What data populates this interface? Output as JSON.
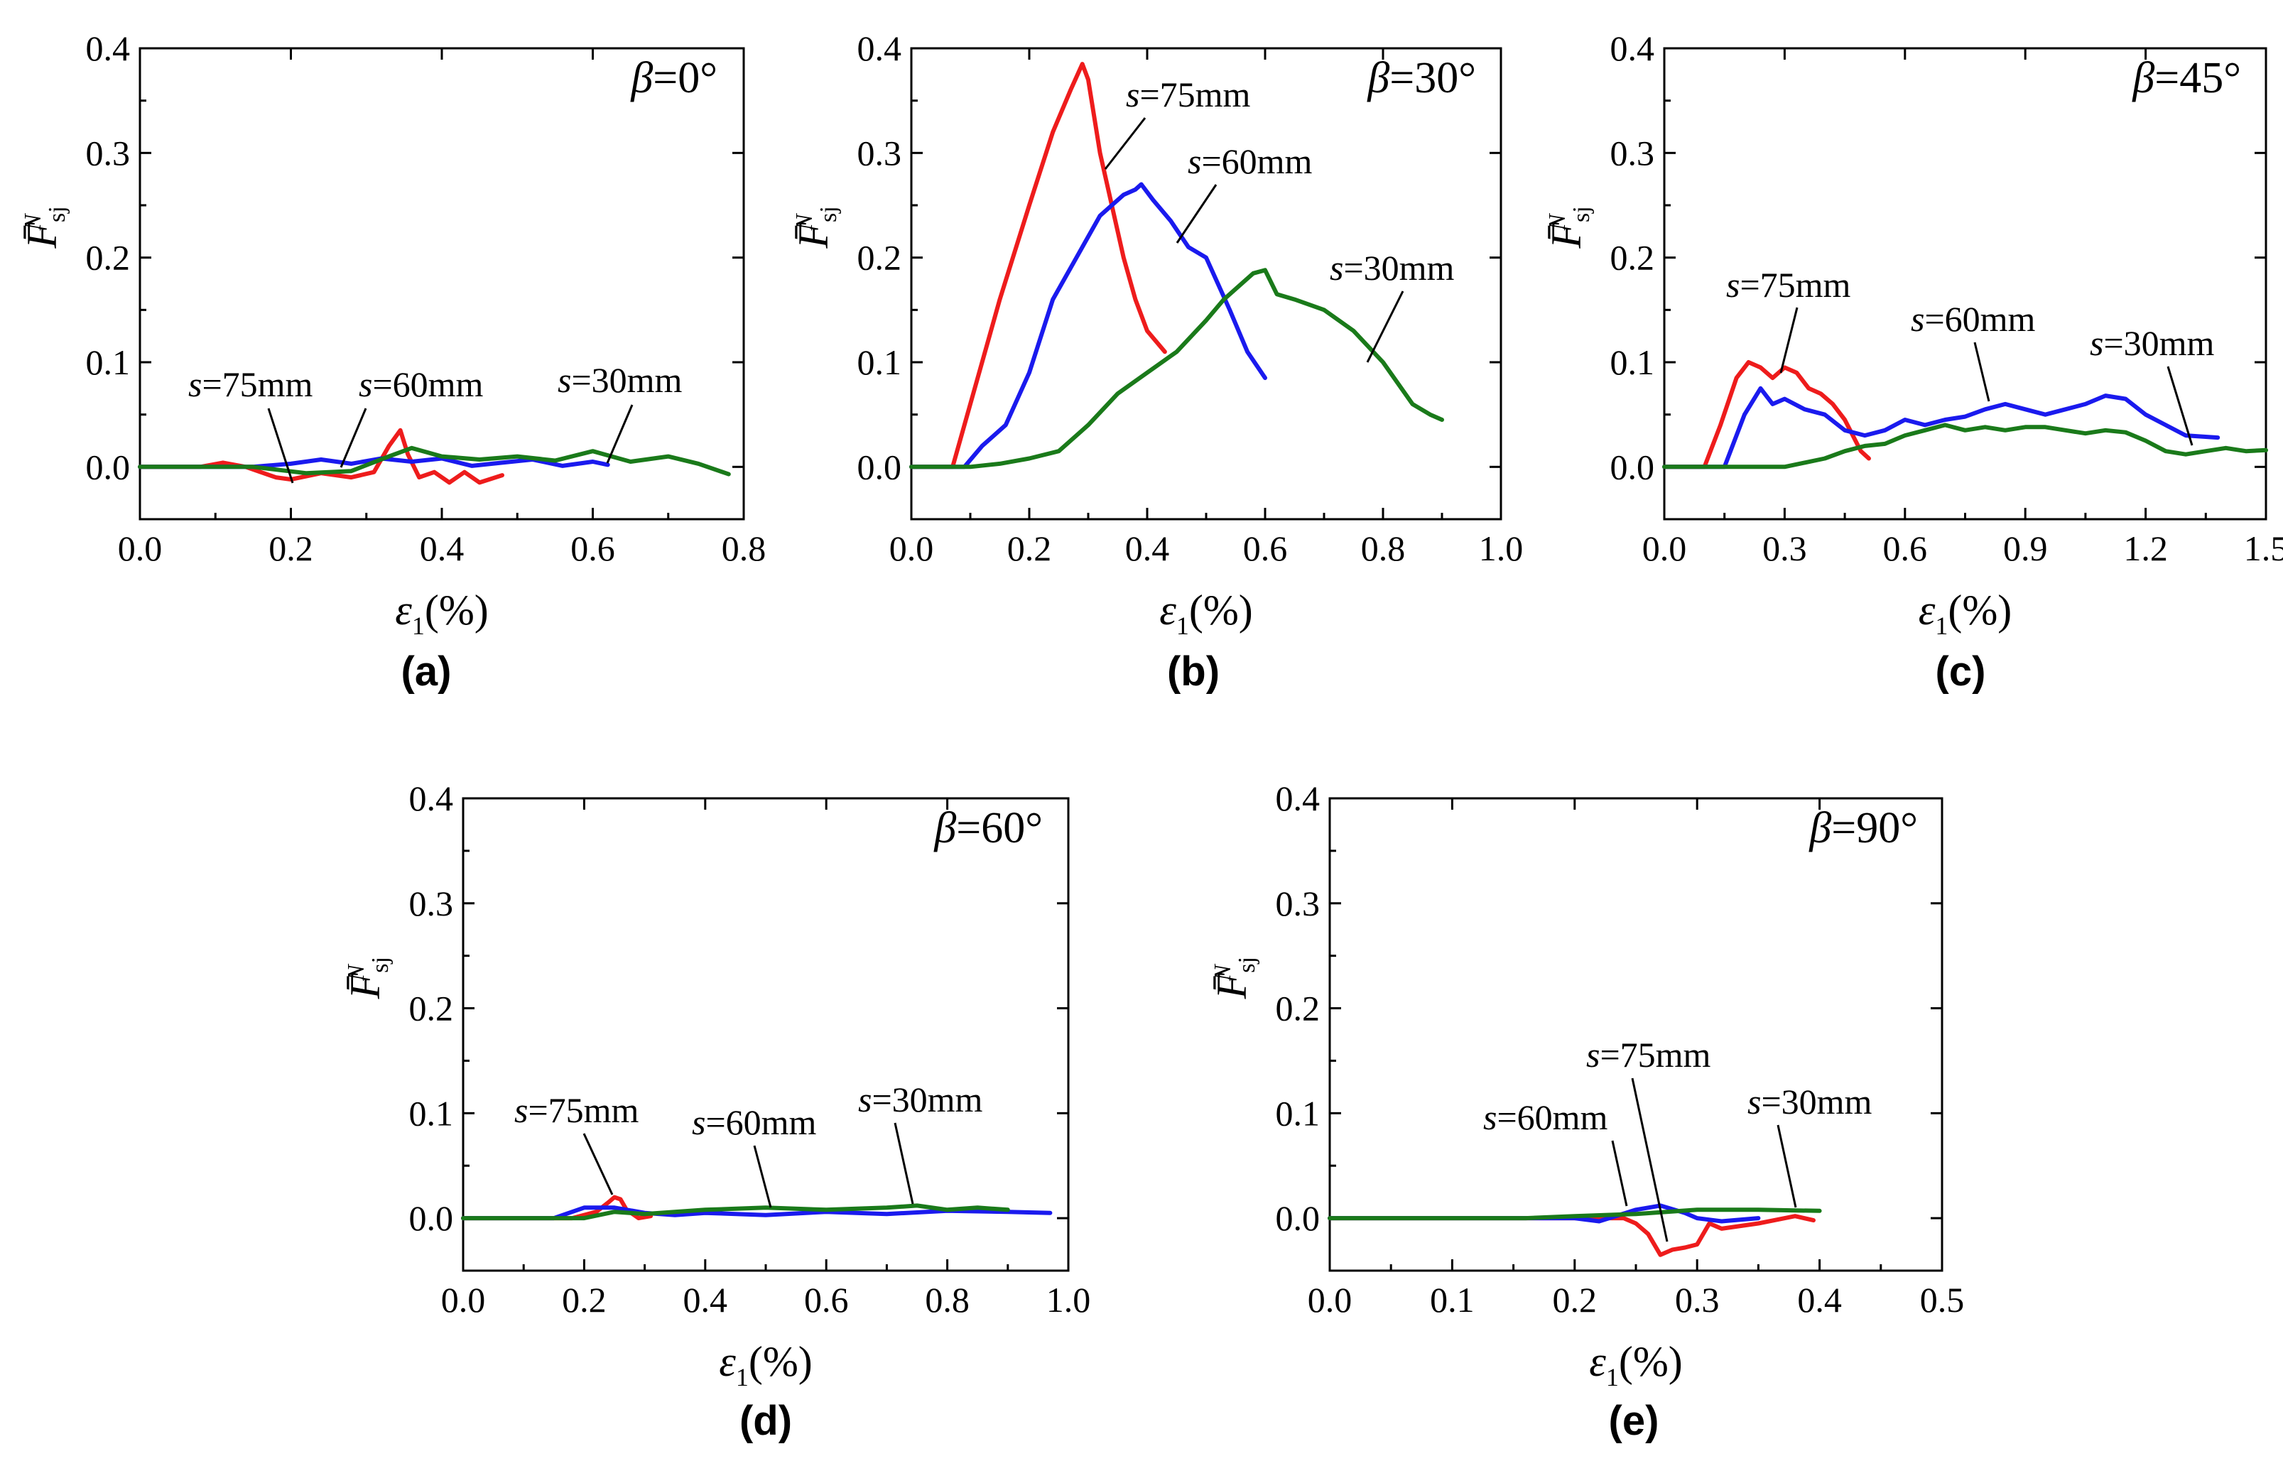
{
  "colors": {
    "s75mm": "#ee1c1c",
    "s60mm": "#1a1aee",
    "s30mm": "#1a7a1a"
  },
  "chart_data": [
    {
      "type": "line",
      "panel": "(a)",
      "title": "β=0°",
      "xlabel": "ε1(%)",
      "ylabel": "F̄sj^N",
      "xlim": [
        0,
        0.8
      ],
      "ylim": [
        -0.05,
        0.4
      ],
      "xticks": [
        "0.0",
        "0.2",
        "0.4",
        "0.6",
        "0.8"
      ],
      "yticks": [
        "0.0",
        "0.1",
        "0.2",
        "0.3",
        "0.4"
      ],
      "series": [
        {
          "name": "s=75mm",
          "color": "#ee1c1c",
          "x": [
            0,
            0.08,
            0.11,
            0.14,
            0.18,
            0.2,
            0.24,
            0.28,
            0.31,
            0.33,
            0.345,
            0.355,
            0.37,
            0.39,
            0.41,
            0.43,
            0.45,
            0.48
          ],
          "y": [
            0,
            0,
            0.004,
            0,
            -0.01,
            -0.012,
            -0.006,
            -0.01,
            -0.005,
            0.02,
            0.035,
            0.012,
            -0.01,
            -0.005,
            -0.015,
            -0.005,
            -0.015,
            -0.008
          ]
        },
        {
          "name": "s=60mm",
          "color": "#1a1aee",
          "x": [
            0,
            0.15,
            0.2,
            0.24,
            0.28,
            0.32,
            0.36,
            0.4,
            0.44,
            0.48,
            0.52,
            0.56,
            0.6,
            0.62
          ],
          "y": [
            0,
            0,
            0.003,
            0.007,
            0.003,
            0.008,
            0.005,
            0.008,
            0.001,
            0.004,
            0.007,
            0.001,
            0.005,
            0.002
          ]
        },
        {
          "name": "s=30mm",
          "color": "#1a7a1a",
          "x": [
            0,
            0.15,
            0.22,
            0.28,
            0.33,
            0.36,
            0.4,
            0.45,
            0.5,
            0.55,
            0.6,
            0.65,
            0.7,
            0.74,
            0.78
          ],
          "y": [
            0,
            0,
            -0.006,
            -0.004,
            0.01,
            0.018,
            0.01,
            0.007,
            0.01,
            0.006,
            0.015,
            0.005,
            0.01,
            0.003,
            -0.007
          ]
        }
      ],
      "annotations": [
        "s=75mm",
        "s=60mm",
        "s=30mm"
      ]
    },
    {
      "type": "line",
      "panel": "(b)",
      "title": "β=30°",
      "xlabel": "ε1(%)",
      "ylabel": "F̄sj^N",
      "xlim": [
        0,
        1.0
      ],
      "ylim": [
        -0.05,
        0.4
      ],
      "xticks": [
        "0.0",
        "0.2",
        "0.4",
        "0.6",
        "0.8",
        "1.0"
      ],
      "yticks": [
        "0.0",
        "0.1",
        "0.2",
        "0.3",
        "0.4"
      ],
      "series": [
        {
          "name": "s=75mm",
          "color": "#ee1c1c",
          "x": [
            0,
            0.07,
            0.1,
            0.15,
            0.2,
            0.24,
            0.27,
            0.29,
            0.3,
            0.32,
            0.34,
            0.36,
            0.38,
            0.4,
            0.43
          ],
          "y": [
            0,
            0,
            0.06,
            0.16,
            0.25,
            0.32,
            0.36,
            0.385,
            0.37,
            0.3,
            0.25,
            0.2,
            0.16,
            0.13,
            0.11
          ]
        },
        {
          "name": "s=60mm",
          "color": "#1a1aee",
          "x": [
            0,
            0.09,
            0.12,
            0.16,
            0.2,
            0.24,
            0.28,
            0.32,
            0.36,
            0.38,
            0.39,
            0.41,
            0.44,
            0.47,
            0.5,
            0.54,
            0.57,
            0.6
          ],
          "y": [
            0,
            0,
            0.02,
            0.04,
            0.09,
            0.16,
            0.2,
            0.24,
            0.26,
            0.265,
            0.27,
            0.255,
            0.235,
            0.21,
            0.2,
            0.15,
            0.11,
            0.085
          ]
        },
        {
          "name": "s=30mm",
          "color": "#1a7a1a",
          "x": [
            0,
            0.1,
            0.15,
            0.2,
            0.25,
            0.3,
            0.35,
            0.4,
            0.45,
            0.5,
            0.53,
            0.55,
            0.58,
            0.6,
            0.62,
            0.65,
            0.7,
            0.75,
            0.8,
            0.85,
            0.88,
            0.9
          ],
          "y": [
            0,
            0,
            0.003,
            0.008,
            0.015,
            0.04,
            0.07,
            0.09,
            0.11,
            0.14,
            0.16,
            0.17,
            0.185,
            0.188,
            0.165,
            0.16,
            0.15,
            0.13,
            0.1,
            0.06,
            0.05,
            0.045
          ]
        }
      ],
      "annotations": [
        "s=75mm",
        "s=60mm",
        "s=30mm"
      ]
    },
    {
      "type": "line",
      "panel": "(c)",
      "title": "β=45°",
      "xlabel": "ε1(%)",
      "ylabel": "F̄sj^N",
      "xlim": [
        0,
        1.5
      ],
      "ylim": [
        -0.05,
        0.4
      ],
      "xticks": [
        "0.0",
        "0.3",
        "0.6",
        "0.9",
        "1.2",
        "1.5"
      ],
      "yticks": [
        "0.0",
        "0.1",
        "0.2",
        "0.3",
        "0.4"
      ],
      "series": [
        {
          "name": "s=75mm",
          "color": "#ee1c1c",
          "x": [
            0,
            0.1,
            0.14,
            0.18,
            0.21,
            0.24,
            0.27,
            0.3,
            0.33,
            0.36,
            0.39,
            0.42,
            0.45,
            0.47,
            0.49,
            0.51
          ],
          "y": [
            0,
            0,
            0.04,
            0.085,
            0.1,
            0.095,
            0.085,
            0.095,
            0.09,
            0.075,
            0.07,
            0.06,
            0.045,
            0.03,
            0.015,
            0.008
          ]
        },
        {
          "name": "s=60mm",
          "color": "#1a1aee",
          "x": [
            0,
            0.15,
            0.2,
            0.24,
            0.27,
            0.3,
            0.35,
            0.4,
            0.45,
            0.5,
            0.55,
            0.6,
            0.65,
            0.7,
            0.75,
            0.8,
            0.85,
            0.9,
            0.95,
            1.0,
            1.05,
            1.1,
            1.15,
            1.2,
            1.25,
            1.3,
            1.38
          ],
          "y": [
            0,
            0,
            0.05,
            0.075,
            0.06,
            0.065,
            0.055,
            0.05,
            0.035,
            0.03,
            0.035,
            0.045,
            0.04,
            0.045,
            0.048,
            0.055,
            0.06,
            0.055,
            0.05,
            0.055,
            0.06,
            0.068,
            0.065,
            0.05,
            0.04,
            0.03,
            0.028
          ]
        },
        {
          "name": "s=30mm",
          "color": "#1a7a1a",
          "x": [
            0,
            0.3,
            0.4,
            0.45,
            0.5,
            0.55,
            0.6,
            0.65,
            0.7,
            0.75,
            0.8,
            0.85,
            0.9,
            0.95,
            1.0,
            1.05,
            1.1,
            1.15,
            1.2,
            1.25,
            1.3,
            1.35,
            1.4,
            1.45,
            1.5
          ],
          "y": [
            0,
            0,
            0.008,
            0.015,
            0.02,
            0.022,
            0.03,
            0.035,
            0.04,
            0.035,
            0.038,
            0.035,
            0.038,
            0.038,
            0.035,
            0.032,
            0.035,
            0.033,
            0.025,
            0.015,
            0.012,
            0.015,
            0.018,
            0.015,
            0.016
          ]
        }
      ],
      "annotations": [
        "s=75mm",
        "s=60mm",
        "s=30mm"
      ]
    },
    {
      "type": "line",
      "panel": "(d)",
      "title": "β=60°",
      "xlabel": "ε1(%)",
      "ylabel": "F̄sj^N",
      "xlim": [
        0,
        1.0
      ],
      "ylim": [
        -0.05,
        0.4
      ],
      "xticks": [
        "0.0",
        "0.2",
        "0.4",
        "0.6",
        "0.8",
        "1.0"
      ],
      "yticks": [
        "0.0",
        "0.1",
        "0.2",
        "0.3",
        "0.4"
      ],
      "series": [
        {
          "name": "s=75mm",
          "color": "#ee1c1c",
          "x": [
            0,
            0.18,
            0.2,
            0.22,
            0.24,
            0.25,
            0.26,
            0.27,
            0.29,
            0.31
          ],
          "y": [
            0,
            0,
            0.003,
            0.006,
            0.015,
            0.02,
            0.018,
            0.008,
            0,
            0.002
          ]
        },
        {
          "name": "s=60mm",
          "color": "#1a1aee",
          "x": [
            0,
            0.15,
            0.2,
            0.25,
            0.3,
            0.35,
            0.4,
            0.5,
            0.6,
            0.7,
            0.8,
            0.9,
            0.97
          ],
          "y": [
            0,
            0,
            0.01,
            0.01,
            0.005,
            0.003,
            0.005,
            0.003,
            0.006,
            0.004,
            0.007,
            0.006,
            0.005
          ]
        },
        {
          "name": "s=30mm",
          "color": "#1a7a1a",
          "x": [
            0,
            0.2,
            0.25,
            0.3,
            0.4,
            0.5,
            0.6,
            0.7,
            0.75,
            0.8,
            0.85,
            0.9
          ],
          "y": [
            0,
            0,
            0.006,
            0.004,
            0.008,
            0.01,
            0.008,
            0.01,
            0.012,
            0.008,
            0.01,
            0.008
          ]
        }
      ],
      "annotations": [
        "s=75mm",
        "s=60mm",
        "s=30mm"
      ]
    },
    {
      "type": "line",
      "panel": "(e)",
      "title": "β=90°",
      "xlabel": "ε1(%)",
      "ylabel": "F̄sj^N",
      "xlim": [
        0,
        0.5
      ],
      "ylim": [
        -0.05,
        0.4
      ],
      "xticks": [
        "0.0",
        "0.1",
        "0.2",
        "0.3",
        "0.4",
        "0.5"
      ],
      "yticks": [
        "0.0",
        "0.1",
        "0.2",
        "0.3",
        "0.4"
      ],
      "series": [
        {
          "name": "s=75mm",
          "color": "#ee1c1c",
          "x": [
            0,
            0.24,
            0.25,
            0.26,
            0.27,
            0.28,
            0.29,
            0.3,
            0.31,
            0.32,
            0.35,
            0.38,
            0.395
          ],
          "y": [
            0,
            0,
            -0.005,
            -0.015,
            -0.035,
            -0.03,
            -0.028,
            -0.025,
            -0.005,
            -0.01,
            -0.005,
            0.002,
            -0.002
          ]
        },
        {
          "name": "s=60mm",
          "color": "#1a1aee",
          "x": [
            0,
            0.2,
            0.22,
            0.25,
            0.27,
            0.29,
            0.3,
            0.32,
            0.35
          ],
          "y": [
            0,
            0,
            -0.003,
            0.008,
            0.012,
            0.005,
            0,
            -0.003,
            0
          ]
        },
        {
          "name": "s=30mm",
          "color": "#1a7a1a",
          "x": [
            0,
            0.16,
            0.2,
            0.25,
            0.3,
            0.35,
            0.4
          ],
          "y": [
            0,
            0,
            0.002,
            0.004,
            0.008,
            0.008,
            0.007
          ]
        }
      ],
      "annotations": [
        "s=60mm",
        "s=75mm",
        "s=30mm"
      ]
    }
  ]
}
